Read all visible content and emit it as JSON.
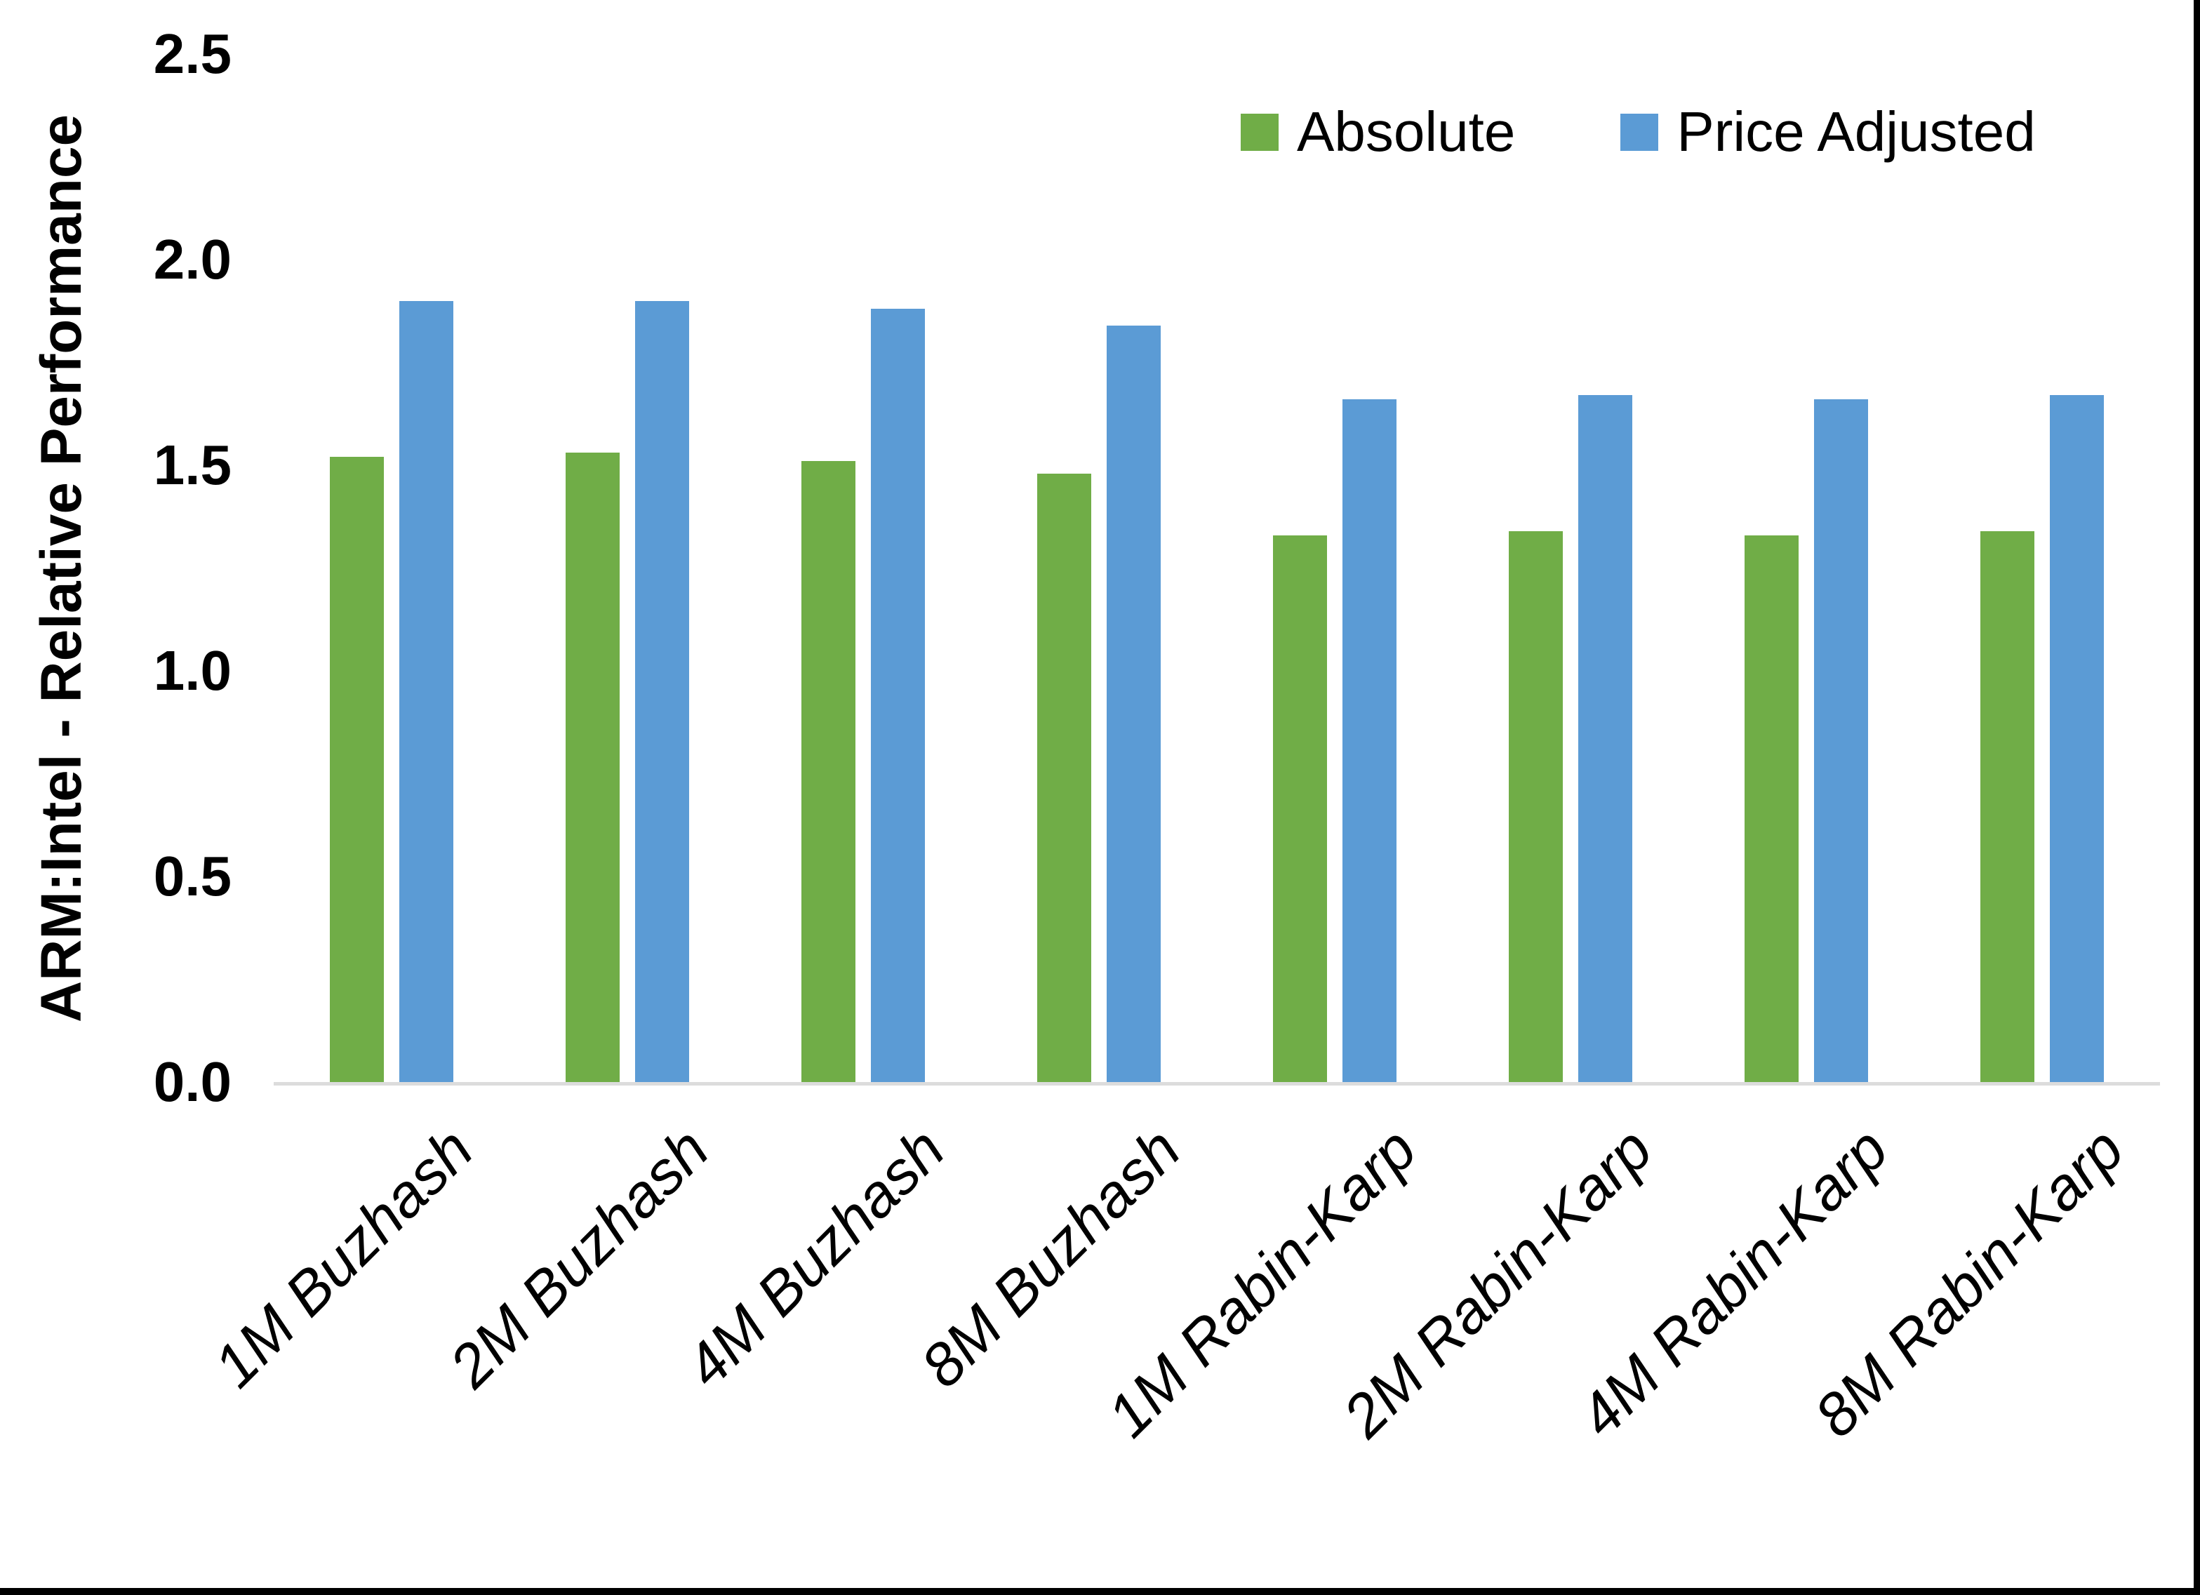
{
  "chart_data": {
    "type": "bar",
    "title": "",
    "xlabel": "",
    "ylabel": "ARM:Intel - Relative Performance",
    "categories": [
      "1M Buzhash",
      "2M Buzhash",
      "4M Buzhash",
      "8M Buzhash",
      "1M Rabin-Karp",
      "2M Rabin-Karp",
      "4M Rabin-Karp",
      "8M Rabin-Karp"
    ],
    "series": [
      {
        "name": "Absolute",
        "color": "#70AD47",
        "values": [
          1.52,
          1.53,
          1.51,
          1.48,
          1.33,
          1.34,
          1.33,
          1.34
        ]
      },
      {
        "name": "Price Adjusted",
        "color": "#5B9BD5",
        "values": [
          1.9,
          1.9,
          1.88,
          1.84,
          1.66,
          1.67,
          1.66,
          1.67
        ]
      }
    ],
    "ylim": [
      0,
      2.5
    ],
    "yticks": [
      "0.0",
      "0.5",
      "1.0",
      "1.5",
      "2.0",
      "2.5"
    ],
    "grid": false,
    "legend_position": "top-right",
    "bar_label_rotation_deg": 45
  },
  "colors": {
    "absolute_green": "#70AD47",
    "price_adjusted_blue": "#5B9BD5",
    "axis_line": "#DCDCDC",
    "text": "#000000",
    "frame_edges": "#000000",
    "background": "#FFFFFF"
  }
}
